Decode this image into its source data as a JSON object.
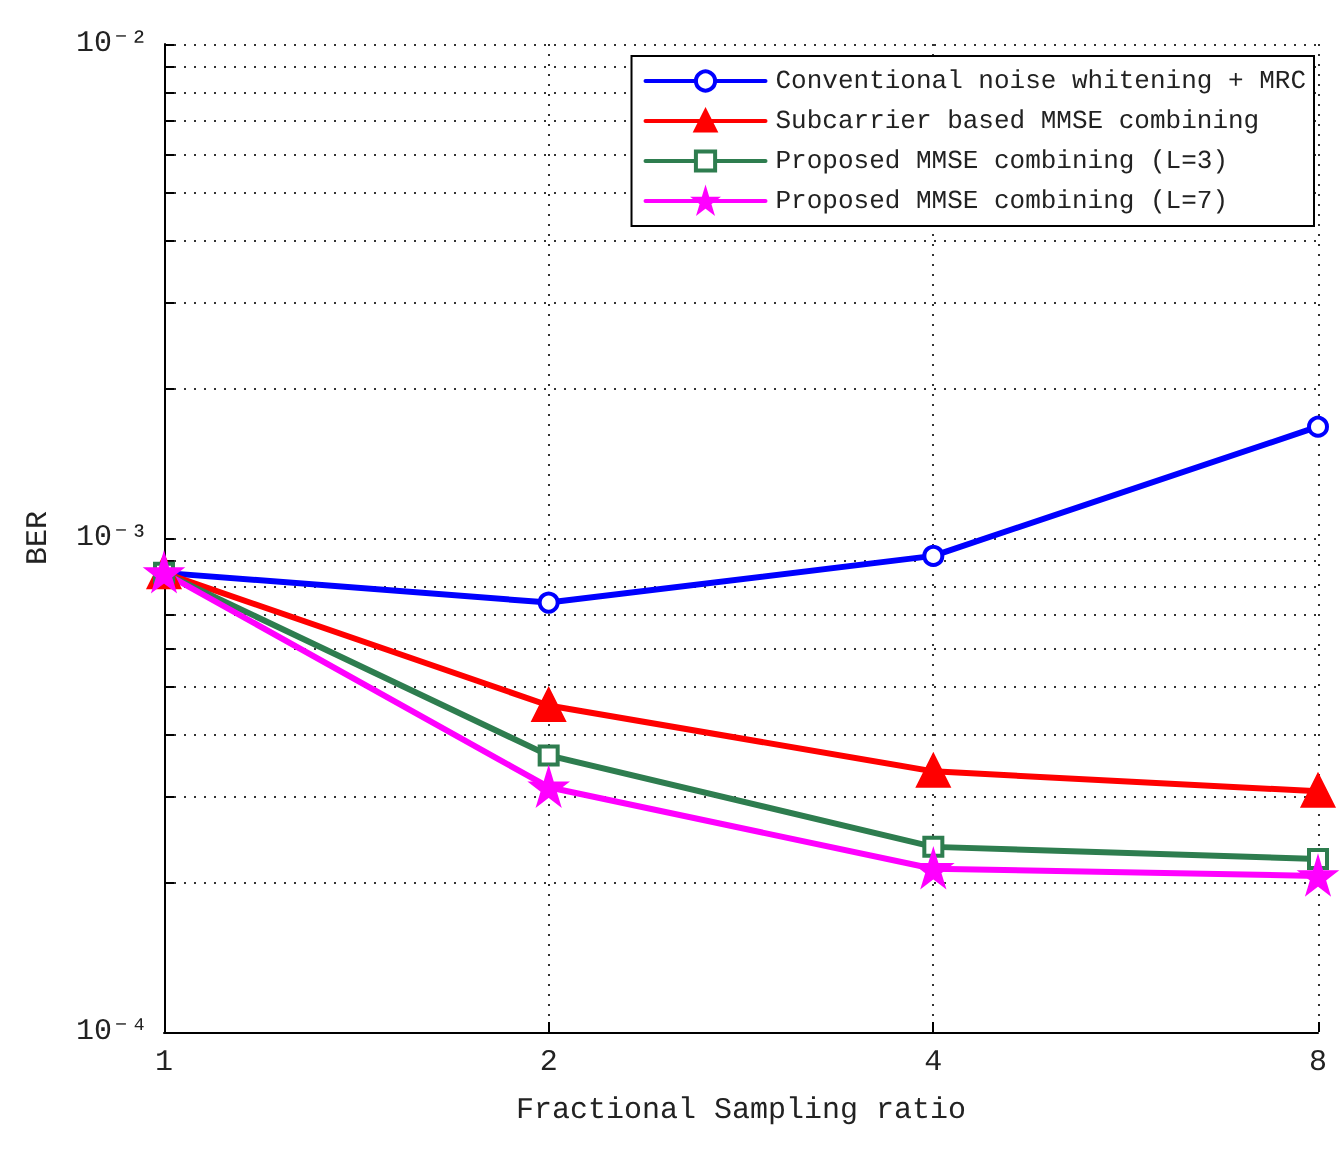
{
  "chart_data": {
    "type": "line",
    "xlabel": "Fractional Sampling ratio",
    "ylabel": "BER",
    "log": "xy",
    "grid": true,
    "legend": "top right",
    "line_style": "solid",
    "x": [
      1,
      2,
      4,
      8
    ],
    "xlim": [
      1,
      8
    ],
    "xticks": [
      1,
      2,
      4,
      8
    ],
    "ylim": [
      0.0001,
      0.01
    ],
    "yticks": [
      {
        "value": 0.0001,
        "label": "10⁻⁴"
      },
      {
        "value": 0.0002,
        "label": null
      },
      {
        "value": 0.0003,
        "label": null
      },
      {
        "value": 0.0004,
        "label": null
      },
      {
        "value": 0.0005,
        "label": null
      },
      {
        "value": 0.0006,
        "label": null
      },
      {
        "value": 0.0007,
        "label": null
      },
      {
        "value": 0.0008,
        "label": null
      },
      {
        "value": 0.0009,
        "label": null
      },
      {
        "value": 0.001,
        "label": "10⁻³"
      },
      {
        "value": 0.002,
        "label": null
      },
      {
        "value": 0.003,
        "label": null
      },
      {
        "value": 0.004,
        "label": null
      },
      {
        "value": 0.005,
        "label": null
      },
      {
        "value": 0.006,
        "label": null
      },
      {
        "value": 0.007,
        "label": null
      },
      {
        "value": 0.008,
        "label": null
      },
      {
        "value": 0.009,
        "label": null
      },
      {
        "value": 0.01,
        "label": "10⁻²"
      }
    ],
    "series": [
      {
        "name": "Conventional noise whitening + MRC",
        "color": "#0000ff",
        "marker": "circle",
        "values": [
          0.00085,
          0.00074,
          0.00092,
          0.00168
        ]
      },
      {
        "name": "Subcarrier based MMSE combining",
        "color": "#ff0000",
        "marker": "triangle",
        "values": [
          0.00085,
          0.000458,
          0.000337,
          0.000307
        ]
      },
      {
        "name": "Proposed MMSE combining (L=3)",
        "color": "#2e7d4f",
        "marker": "square",
        "values": [
          0.00085,
          0.000363,
          0.000237,
          0.000224
        ]
      },
      {
        "name": "Proposed MMSE combining (L=7)",
        "color": "#ff00ff",
        "marker": "star",
        "values": [
          0.00085,
          0.000313,
          0.000214,
          0.000207
        ]
      }
    ]
  }
}
